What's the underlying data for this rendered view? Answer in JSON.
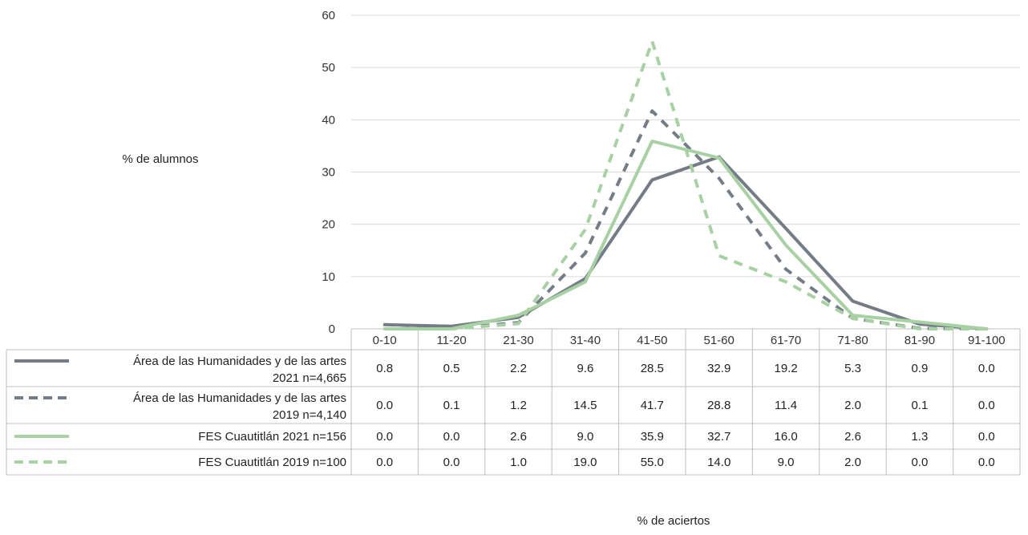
{
  "chart_data": {
    "type": "line",
    "categories": [
      "0-10",
      "11-20",
      "21-30",
      "31-40",
      "41-50",
      "51-60",
      "61-70",
      "71-80",
      "81-90",
      "91-100"
    ],
    "ylim": [
      0,
      60
    ],
    "yticks": [
      0,
      10,
      20,
      30,
      40,
      50,
      60
    ],
    "ylabel": "% de alumnos",
    "xlabel": "% de aciertos",
    "grid": true,
    "legend": "data table below chart",
    "series": [
      {
        "name": "Área de las Humanidades y de las artes 2021 n=4,665",
        "color": "#747d86",
        "dash": "solid",
        "values": [
          0.8,
          0.5,
          2.2,
          9.6,
          28.5,
          32.9,
          19.2,
          5.3,
          0.9,
          0.0
        ]
      },
      {
        "name": "Área de las Humanidades y de las artes 2019 n=4,140",
        "color": "#747d86",
        "dash": "dashed",
        "values": [
          0.0,
          0.1,
          1.2,
          14.5,
          41.7,
          28.8,
          11.4,
          2.0,
          0.1,
          0.0
        ]
      },
      {
        "name": "FES Cuautitlán 2021 n=156",
        "color": "#a8d1a3",
        "dash": "solid",
        "values": [
          0.0,
          0.0,
          2.6,
          9.0,
          35.9,
          32.7,
          16.0,
          2.6,
          1.3,
          0.0
        ]
      },
      {
        "name": "FES Cuautitlán 2019 n=100",
        "color": "#a8d1a3",
        "dash": "dashed",
        "values": [
          0.0,
          0.0,
          1.0,
          19.0,
          55.0,
          14.0,
          9.0,
          2.0,
          0.0,
          0.0
        ]
      }
    ]
  }
}
